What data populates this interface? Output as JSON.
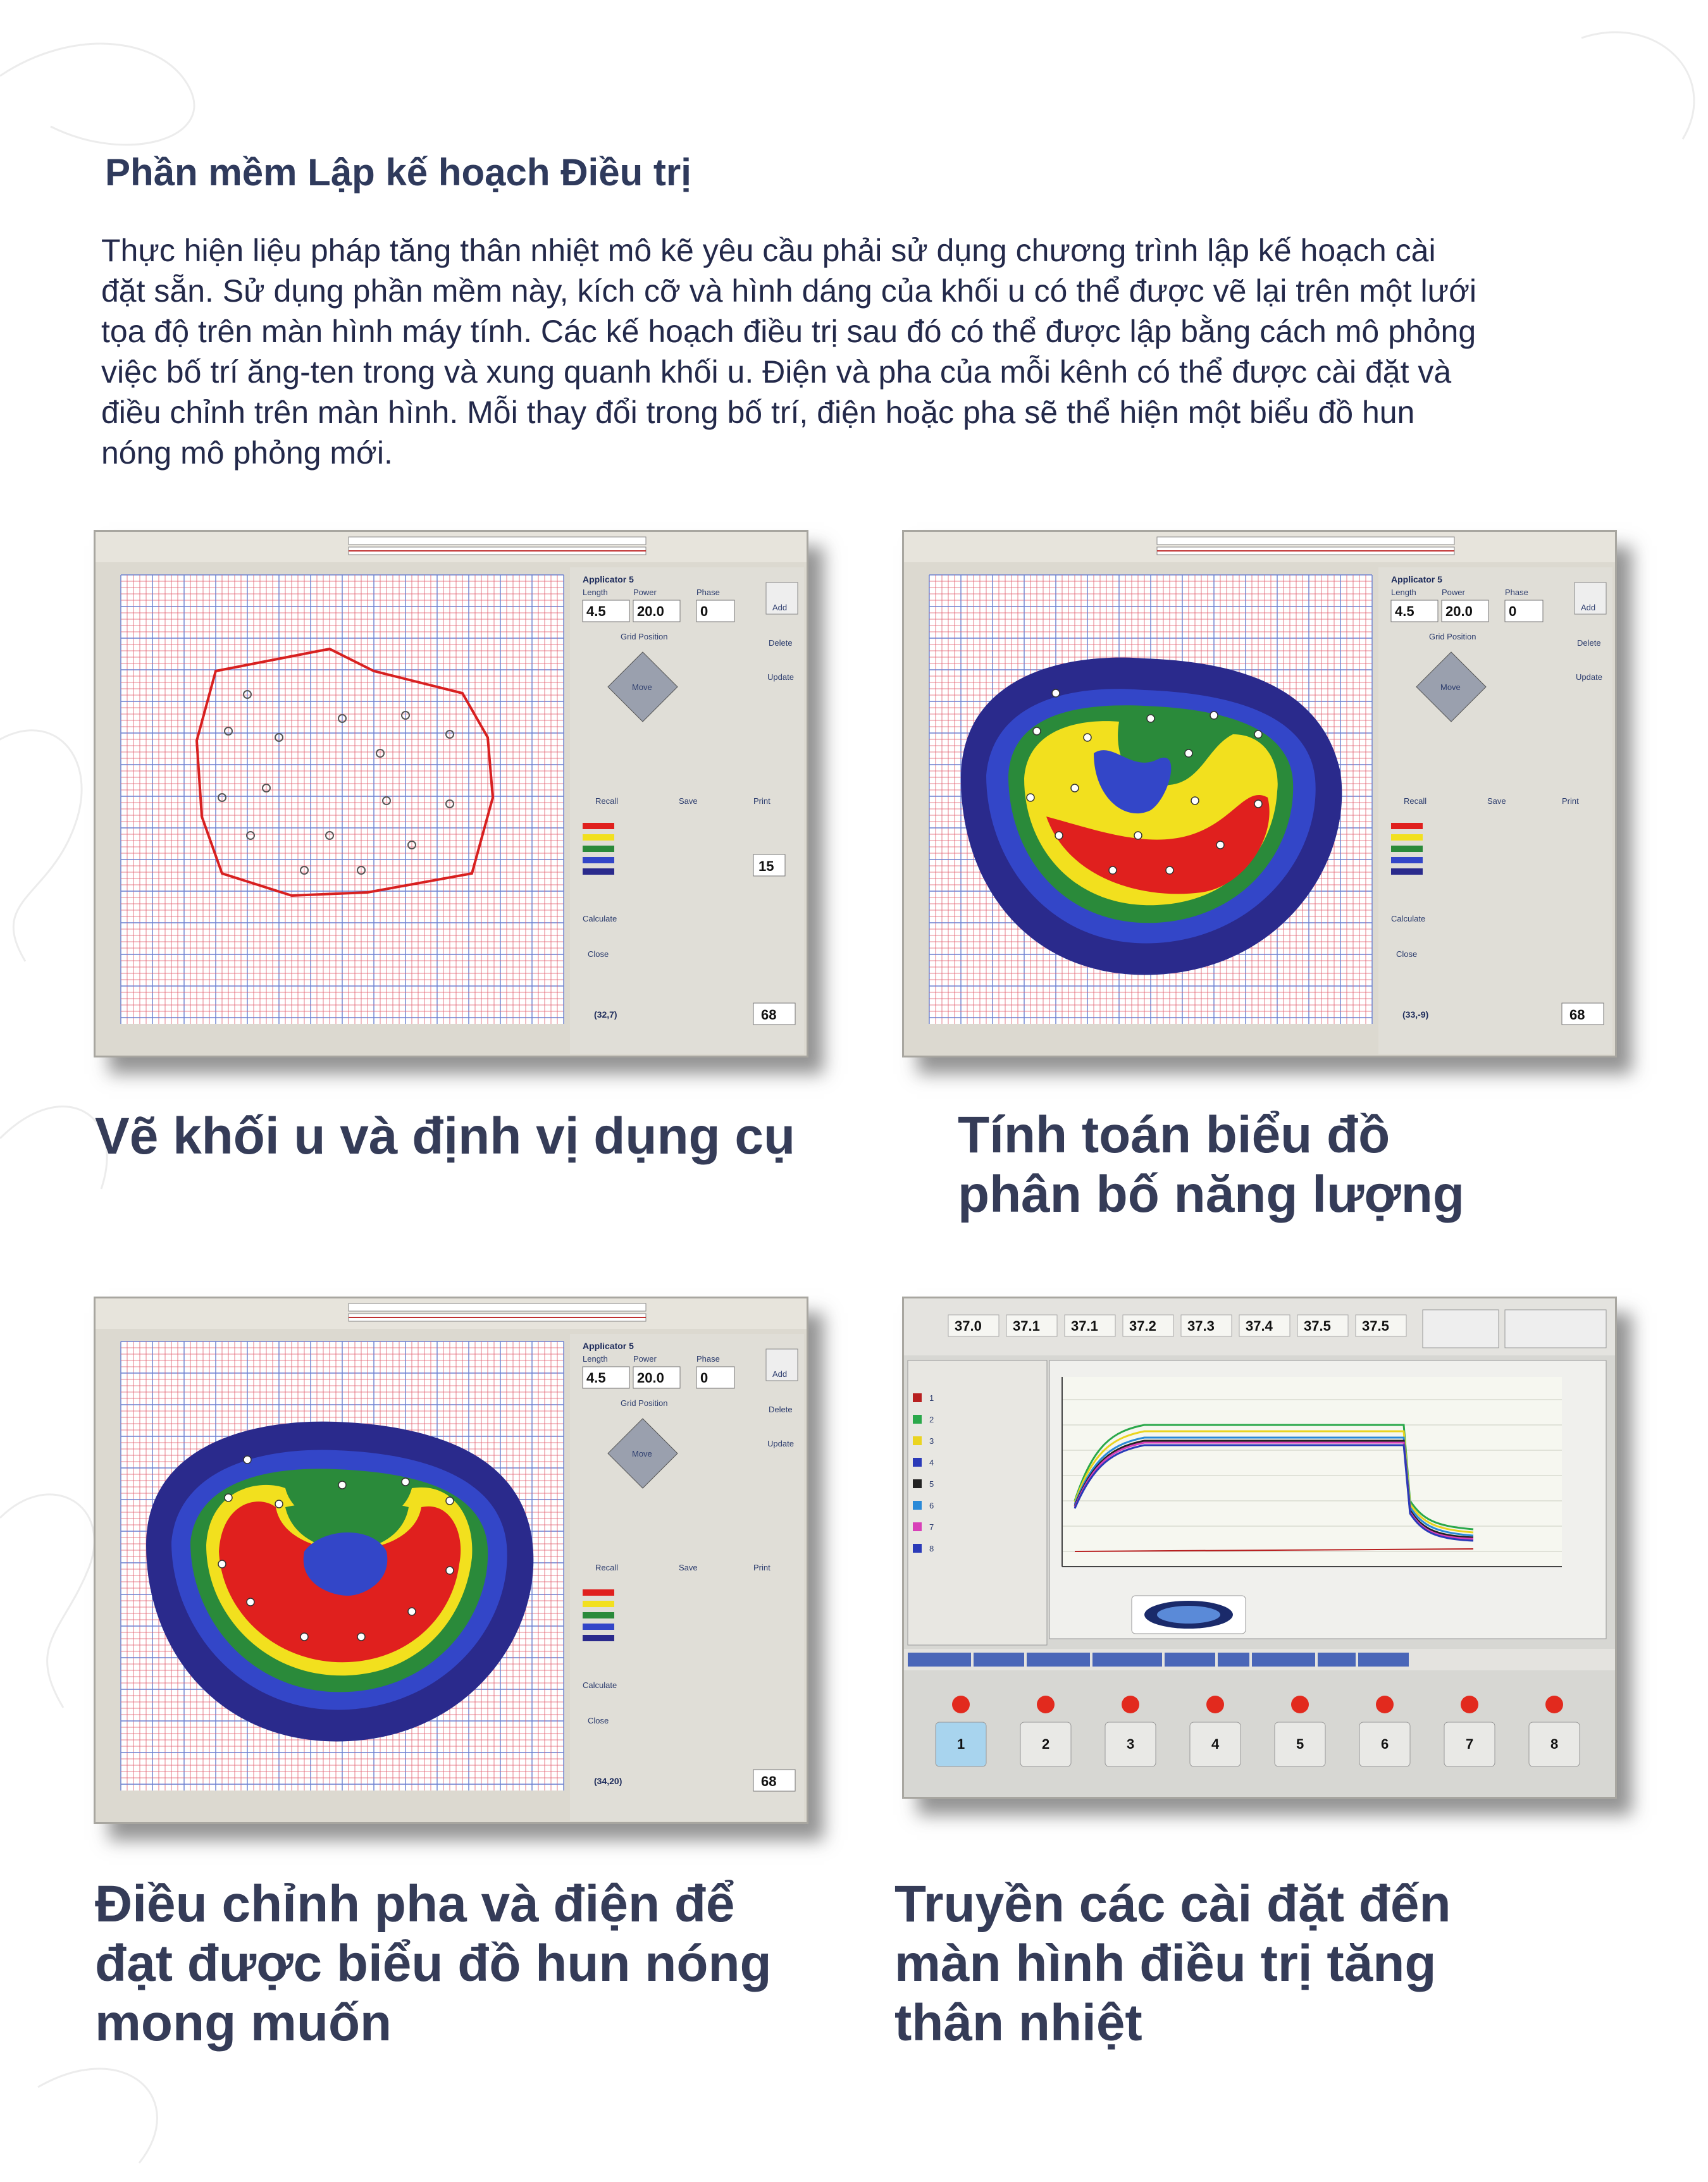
{
  "heading": "Phần mềm Lập kế hoạch Điều trị",
  "intro": "Thực hiện liệu pháp tăng thân nhiệt mô kẽ yêu cầu phải sử dụng chương trình lập kế hoạch cài đặt sẵn. Sử dụng phần mềm này, kích cỡ và hình dáng của khối u có thể được vẽ lại trên một lưới tọa độ trên màn hình máy tính. Các kế hoạch điều trị sau đó có thể được lập bằng cách mô phỏng việc bố trí ăng-ten trong và xung quanh khối u. Điện và pha của mỗi kênh có thể được cài đặt và điều chỉnh trên màn hình. Mỗi thay đổi trong bố trí, điện hoặc pha sẽ thể hiện một biểu đồ hun nóng mô phỏng mới.",
  "panels": [
    {
      "caption_lines": [
        "Vẽ khối u và định vị dụng cụ"
      ],
      "cursor": "(32,7)",
      "grid": "68"
    },
    {
      "caption_lines": [
        "Tính toán biểu đồ",
        "phân bố năng lượng"
      ],
      "cursor": "(33,-9)",
      "grid": "68"
    },
    {
      "caption_lines": [
        "Điều chỉnh pha và điện để",
        "đạt được biểu đồ hun nóng",
        "mong muốn"
      ],
      "cursor": "(34,20)",
      "grid": "68"
    },
    {
      "caption_lines": [
        "Truyền các cài đặt đến",
        "màn hình điều trị tăng",
        "thân nhiệt"
      ]
    }
  ],
  "planner_ui": {
    "applicator": "Applicator 5",
    "length_label": "Length",
    "power_label": "Power",
    "phase_label": "Phase",
    "length": "4.5",
    "power": "20.0",
    "phase": "0",
    "add": "Add",
    "delete": "Delete",
    "update": "Update",
    "grid_position": "Grid Position",
    "move": "Move",
    "recall": "Recall",
    "save": "Save",
    "print": "Print",
    "calculate": "Calculate",
    "close": "Close",
    "max_dist": "15"
  },
  "treatment_ui": {
    "temps": [
      "37.0",
      "37.1",
      "37.1",
      "37.2",
      "37.3",
      "37.4",
      "37.5",
      "37.5"
    ],
    "channels": [
      "1",
      "2",
      "3",
      "4",
      "5",
      "6",
      "7",
      "8"
    ]
  },
  "colors": {
    "navy": "#2a2a8c",
    "blue": "#3346c8",
    "green": "#2a8a3a",
    "yellow": "#f2e01e",
    "red": "#e0201e",
    "grid_red": "#e05a6a",
    "grid_blue": "#6a7fd0"
  }
}
